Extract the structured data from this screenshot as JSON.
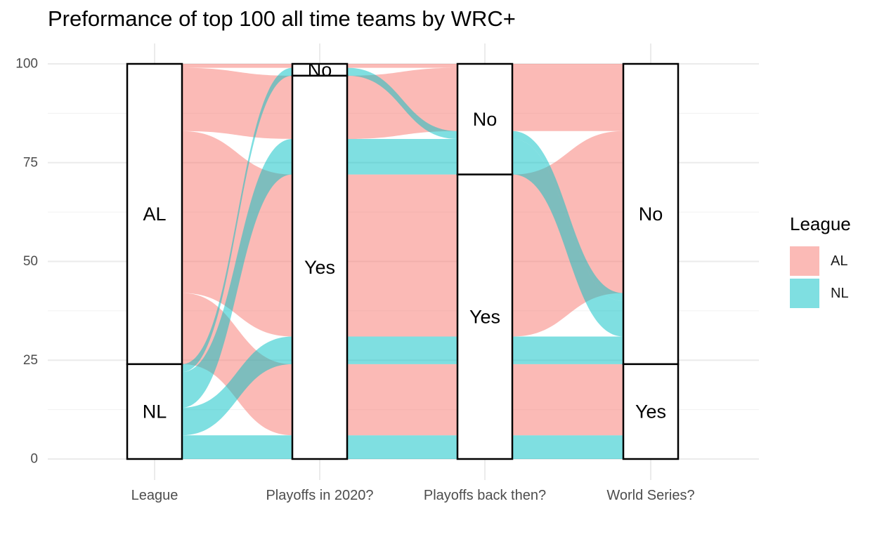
{
  "title": "Preformance of top 100 all time teams by WRC+",
  "legend": {
    "title": "League",
    "items": [
      {
        "label": "AL",
        "color": "#F8766D"
      },
      {
        "label": "NL",
        "color": "#00BFC4"
      }
    ]
  },
  "chart_data": {
    "type": "alluvial",
    "title": "Preformance of top 100 all time teams by WRC+",
    "xlabel": "",
    "ylabel": "",
    "ylim": [
      0,
      100
    ],
    "yticks": [
      0,
      25,
      50,
      75,
      100
    ],
    "grid": true,
    "legend_position": "right",
    "fill_opacity": 0.5,
    "axes": [
      "League",
      "Playoffs in 2020?",
      "Playoffs back then?",
      "World Series?"
    ],
    "strata": [
      [
        {
          "label": "AL",
          "count": 76
        },
        {
          "label": "NL",
          "count": 24
        }
      ],
      [
        {
          "label": "No",
          "count": 3
        },
        {
          "label": "Yes",
          "count": 97
        }
      ],
      [
        {
          "label": "No",
          "count": 28
        },
        {
          "label": "Yes",
          "count": 72
        }
      ],
      [
        {
          "label": "No",
          "count": 76
        },
        {
          "label": "Yes",
          "count": 24
        }
      ]
    ],
    "flows": [
      {
        "league": "NL",
        "path": [
          "NL",
          "Yes",
          "Yes",
          "Yes"
        ],
        "count": 6
      },
      {
        "league": "AL",
        "path": [
          "AL",
          "Yes",
          "Yes",
          "Yes"
        ],
        "count": 18
      },
      {
        "league": "NL",
        "path": [
          "NL",
          "Yes",
          "Yes",
          "No"
        ],
        "count": 7
      },
      {
        "league": "AL",
        "path": [
          "AL",
          "Yes",
          "Yes",
          "No"
        ],
        "count": 41
      },
      {
        "league": "NL",
        "path": [
          "NL",
          "Yes",
          "No",
          "No"
        ],
        "count": 9
      },
      {
        "league": "AL",
        "path": [
          "AL",
          "Yes",
          "No",
          "No"
        ],
        "count": 16
      },
      {
        "league": "NL",
        "path": [
          "NL",
          "No",
          "No",
          "No"
        ],
        "count": 2
      },
      {
        "league": "AL",
        "path": [
          "AL",
          "No",
          "No",
          "No"
        ],
        "count": 1
      }
    ]
  }
}
